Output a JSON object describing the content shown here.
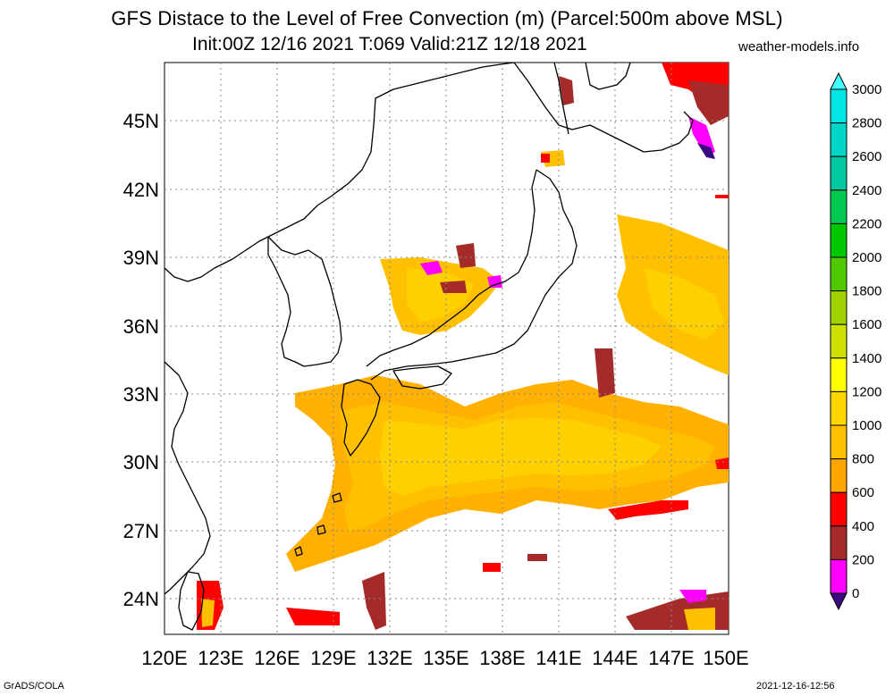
{
  "title_line1": "GFS Distace to the Level of Free Convection (m) (Parcel:500m above MSL)",
  "title_line2": "Init:00Z 12/16 2021 T:069 Valid:21Z 12/18 2021",
  "site": "weather-models.info",
  "footer_left": "GrADS/COLA",
  "footer_right": "2021-12-16-12:56",
  "map": {
    "lon_labels": [
      "120E",
      "123E",
      "126E",
      "129E",
      "132E",
      "135E",
      "138E",
      "141E",
      "144E",
      "147E",
      "150E"
    ],
    "lat_labels": [
      "45N",
      "42N",
      "39N",
      "36N",
      "33N",
      "30N",
      "27N",
      "24N"
    ]
  },
  "colorbar": {
    "levels": [
      "0",
      "200",
      "400",
      "600",
      "800",
      "1000",
      "1200",
      "1400",
      "1600",
      "1800",
      "2000",
      "2200",
      "2400",
      "2600",
      "2800",
      "3000"
    ],
    "colors": [
      "#3b0a80",
      "#ff00ff",
      "#a52a2a",
      "#ff0000",
      "#ffa500",
      "#ffc000",
      "#ffd700",
      "#ffff00",
      "#d0e000",
      "#a0d200",
      "#50c800",
      "#00c800",
      "#00c850",
      "#00c8a0",
      "#00d7c8",
      "#00e5e5",
      "#40ffff"
    ]
  },
  "legend": {
    "colors": {
      "magenta": "#ff00ff",
      "brown": "#a52a2a",
      "red": "#ff0000",
      "orange": "#ffa500",
      "amber": "#ffc000",
      "gold": "#ffd700",
      "purple": "#3b0a80"
    }
  }
}
